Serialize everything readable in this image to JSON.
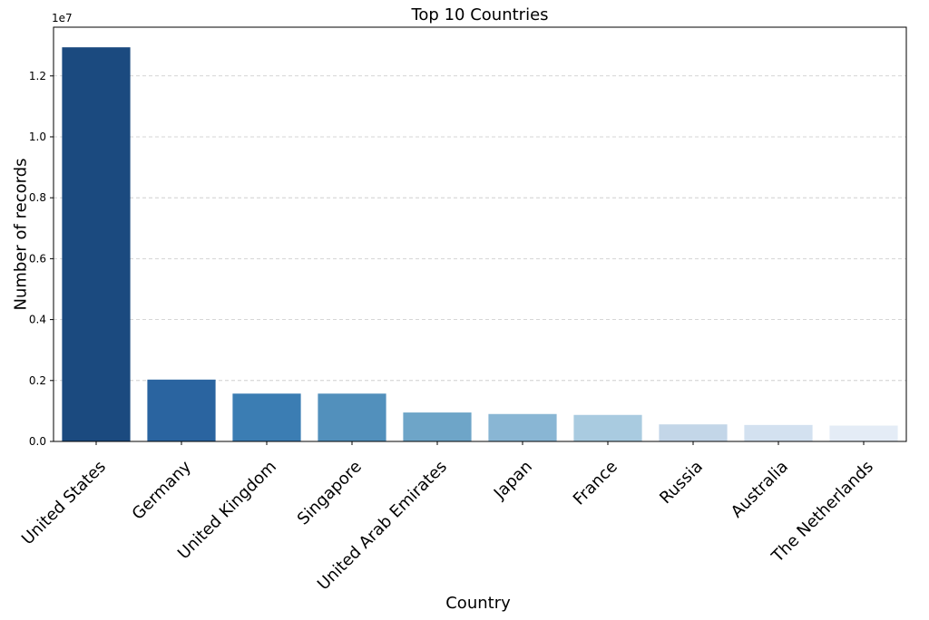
{
  "chart_data": {
    "type": "bar",
    "title": "Top 10 Countries",
    "xlabel": "Country",
    "ylabel": "Number of records",
    "y_offset_label": "1e7",
    "y_scale_factor": 10000000,
    "ylim": [
      0,
      1.36
    ],
    "y_ticks": [
      0.0,
      0.2,
      0.4,
      0.6,
      0.8,
      1.0,
      1.2
    ],
    "y_tick_labels": [
      "0.0",
      "0.2",
      "0.4",
      "0.6",
      "0.8",
      "1.0",
      "1.2"
    ],
    "grid": "y-dashed",
    "categories": [
      "United States",
      "Germany",
      "United Kingdom",
      "Singapore",
      "United Arab Emirates",
      "Japan",
      "France",
      "Russia",
      "Australia",
      "The Netherlands"
    ],
    "values": [
      1.294,
      0.203,
      0.157,
      0.157,
      0.095,
      0.09,
      0.087,
      0.056,
      0.054,
      0.052
    ],
    "colors": [
      "#1b4a7f",
      "#2a64a0",
      "#3b7db3",
      "#5290bc",
      "#6ea5c8",
      "#89b6d4",
      "#a9cbe0",
      "#c3d6e8",
      "#d3e1f0",
      "#e4ecf6"
    ]
  }
}
